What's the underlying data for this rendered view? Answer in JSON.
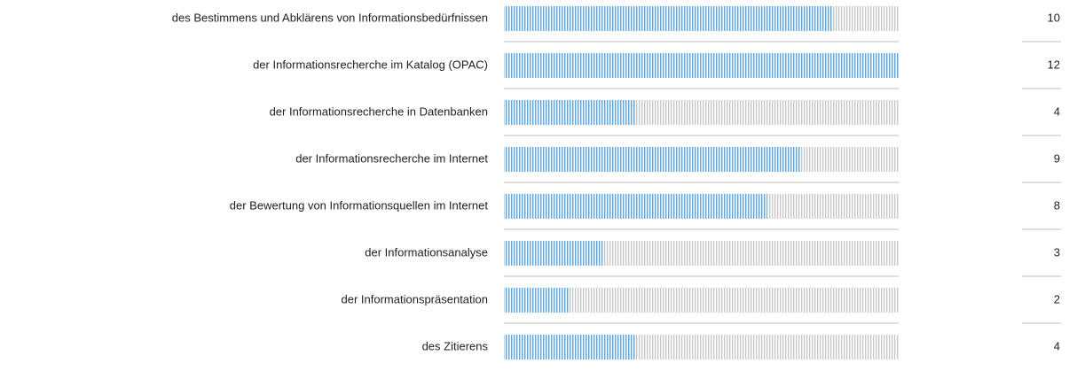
{
  "chart_data": {
    "type": "bar",
    "orientation": "horizontal",
    "categories": [
      "des Bestimmens und Abklärens von Informationsbedürfnissen",
      "der Informationsrecherche im Katalog (OPAC)",
      "der Informationsrecherche in Datenbanken",
      "der Informationsrecherche im Internet",
      "der Bewertung von Informationsquellen im Internet",
      "der Informationsanalyse",
      "der Informationspräsentation",
      "des Zitierens"
    ],
    "values": [
      10,
      12,
      4,
      9,
      8,
      3,
      2,
      4
    ],
    "xlim": [
      0,
      12
    ],
    "color": "#5aa7e8",
    "track_color": "#c8c8c8"
  }
}
